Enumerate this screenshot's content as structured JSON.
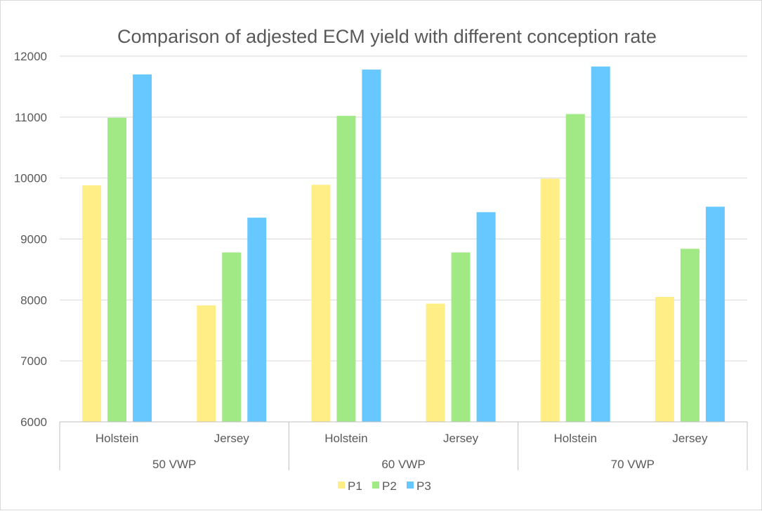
{
  "chart_data": {
    "type": "bar",
    "title": "Comparison of adjested  ECM yield with different conception rate",
    "groups": [
      "50 VWP",
      "60 VWP",
      "70 VWP"
    ],
    "categories": [
      "Holstein",
      "Jersey"
    ],
    "series": [
      {
        "name": "P1",
        "color": "#FFEE85",
        "values": [
          [
            9880,
            7910
          ],
          [
            9890,
            7940
          ],
          [
            9990,
            8050
          ]
        ]
      },
      {
        "name": "P2",
        "color": "#A0E985",
        "values": [
          [
            10990,
            8780
          ],
          [
            11020,
            8780
          ],
          [
            11050,
            8840
          ]
        ]
      },
      {
        "name": "P3",
        "color": "#66C8FF",
        "values": [
          [
            11700,
            9350
          ],
          [
            11780,
            9440
          ],
          [
            11830,
            9530
          ]
        ]
      }
    ],
    "ylim": [
      6000,
      12000
    ],
    "yticks": [
      6000,
      7000,
      8000,
      9000,
      10000,
      11000,
      12000
    ],
    "grid": true,
    "legend_position": "bottom",
    "xlabel": "",
    "ylabel": ""
  }
}
